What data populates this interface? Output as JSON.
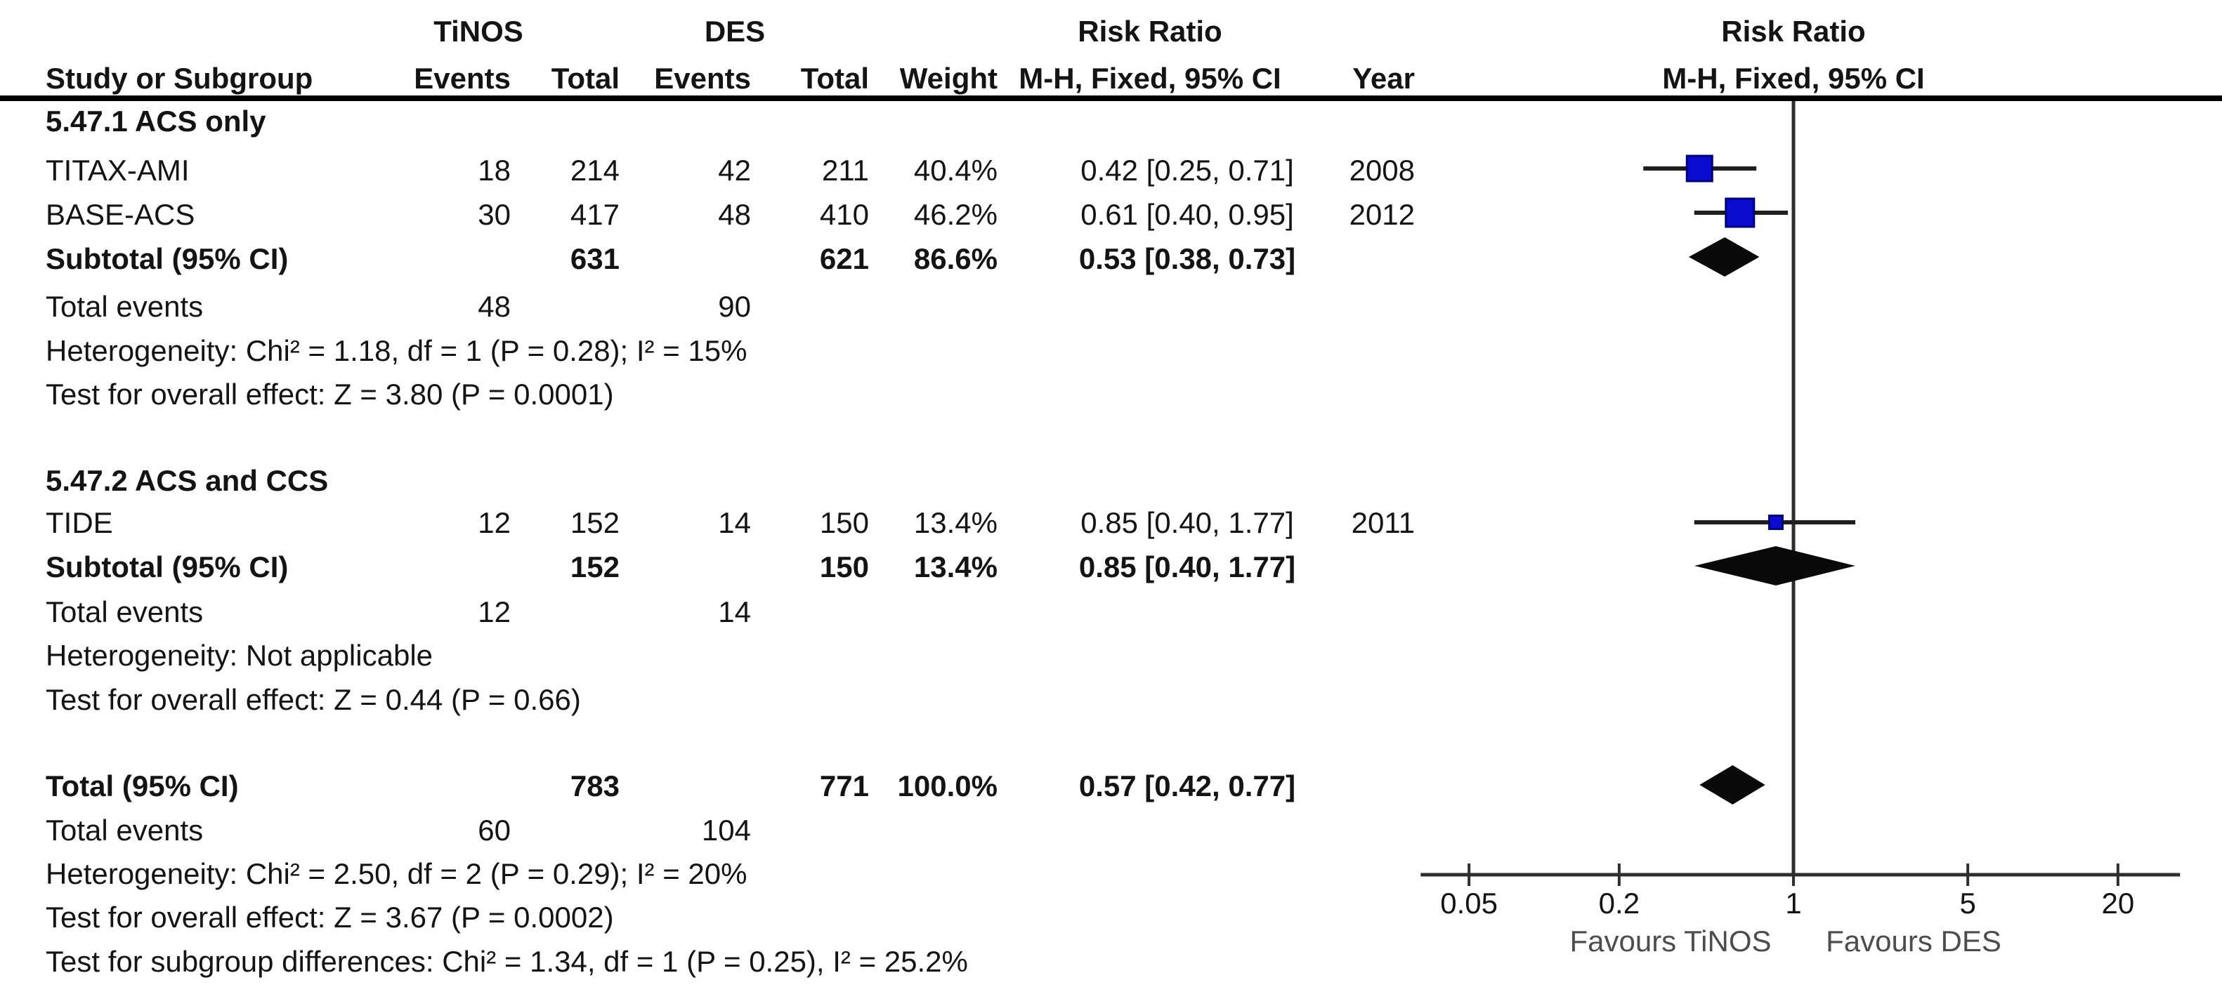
{
  "colors": {
    "square": "#0b0bd0",
    "square_border": "#000075",
    "diamond": "#0a0a0a",
    "ci_line": "#1f1f1f",
    "axis": "#2e2e2e",
    "text": "#141414"
  },
  "header": {
    "treatment_group": "TiNOS",
    "control_group": "DES",
    "risk_ratio": "Risk Ratio",
    "method": "M-H, Fixed, 95% CI",
    "col_study": "Study or Subgroup",
    "col_events": "Events",
    "col_total": "Total",
    "col_weight": "Weight",
    "col_year": "Year"
  },
  "chart_data": {
    "type": "forest",
    "effect_measure": "Risk Ratio",
    "model": "Mantel-Haenszel, Fixed effect, 95% CI",
    "axis": {
      "scale": "log",
      "xlim": [
        0.032,
        35.5
      ],
      "ticks": [
        0.05,
        0.2,
        1,
        5,
        20
      ],
      "tick_labels": [
        "0.05",
        "0.2",
        "1",
        "5",
        "20"
      ],
      "center_value": 1,
      "favours_left": "Favours TiNOS",
      "favours_right": "Favours DES"
    },
    "subgroup1": {
      "title": "5.47.1 ACS only",
      "studies": [
        {
          "name": "TITAX-AMI",
          "events_t": "18",
          "total_t": "214",
          "events_c": "42",
          "total_c": "211",
          "weight": "40.4%",
          "estimate": "0.42 [0.25, 0.71]",
          "year": "2008",
          "rr": 0.42,
          "lo": 0.25,
          "hi": 0.71
        },
        {
          "name": "BASE-ACS",
          "events_t": "30",
          "total_t": "417",
          "events_c": "48",
          "total_c": "410",
          "weight": "46.2%",
          "estimate": "0.61 [0.40, 0.95]",
          "year": "2012",
          "rr": 0.61,
          "lo": 0.4,
          "hi": 0.95
        }
      ],
      "subtotal": {
        "label": "Subtotal (95% CI)",
        "total_t": "631",
        "total_c": "621",
        "weight": "86.6%",
        "estimate": "0.53 [0.38, 0.73]",
        "rr": 0.53,
        "lo": 0.38,
        "hi": 0.73
      },
      "total_events": {
        "label": "Total events",
        "t": "48",
        "c": "90"
      },
      "heterogeneity": "Heterogeneity: Chi² = 1.18, df = 1 (P = 0.28); I² = 15%",
      "overall_effect": "Test for overall effect: Z = 3.80 (P = 0.0001)"
    },
    "subgroup2": {
      "title": "5.47.2 ACS and CCS",
      "studies": [
        {
          "name": "TIDE",
          "events_t": "12",
          "total_t": "152",
          "events_c": "14",
          "total_c": "150",
          "weight": "13.4%",
          "estimate": "0.85 [0.40, 1.77]",
          "year": "2011",
          "rr": 0.85,
          "lo": 0.4,
          "hi": 1.77
        }
      ],
      "subtotal": {
        "label": "Subtotal (95% CI)",
        "total_t": "152",
        "total_c": "150",
        "weight": "13.4%",
        "estimate": "0.85 [0.40, 1.77]",
        "rr": 0.85,
        "lo": 0.4,
        "hi": 1.77
      },
      "total_events": {
        "label": "Total events",
        "t": "12",
        "c": "14"
      },
      "heterogeneity": "Heterogeneity: Not applicable",
      "overall_effect": "Test for overall effect: Z = 0.44 (P = 0.66)"
    },
    "total": {
      "label": "Total (95% CI)",
      "total_t": "783",
      "total_c": "771",
      "weight": "100.0%",
      "estimate": "0.57 [0.42, 0.77]",
      "rr": 0.57,
      "lo": 0.42,
      "hi": 0.77,
      "total_events": {
        "label": "Total events",
        "t": "60",
        "c": "104"
      },
      "heterogeneity": "Heterogeneity: Chi² = 2.50, df = 2 (P = 0.29); I² = 20%",
      "overall_effect": "Test for overall effect: Z = 3.67 (P = 0.0002)",
      "subgroup_diff": "Test for subgroup differences: Chi² = 1.34, df = 1 (P = 0.25), I² = 25.2%"
    }
  }
}
